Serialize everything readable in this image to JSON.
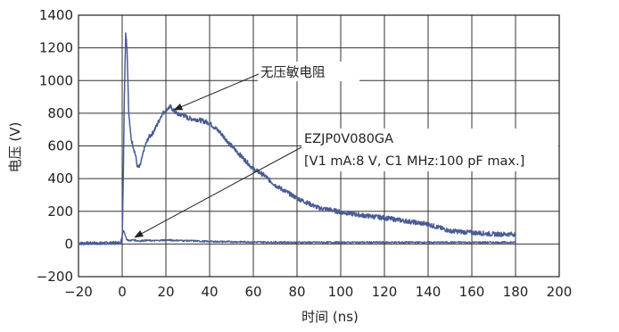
{
  "chart_data": {
    "type": "line",
    "title": "",
    "xlabel": "时间 (ns)",
    "ylabel": "电压 (V)",
    "xlim": [
      -20,
      200
    ],
    "ylim": [
      -200,
      1400
    ],
    "x_ticks": [
      -20,
      0,
      20,
      40,
      60,
      80,
      100,
      120,
      140,
      160,
      180,
      200
    ],
    "x_tick_labels": [
      "−20",
      "0",
      "20",
      "40",
      "60",
      "80",
      "100",
      "120",
      "140",
      "160",
      "180",
      "200"
    ],
    "y_ticks": [
      -200,
      0,
      200,
      400,
      600,
      800,
      1000,
      1200,
      1400
    ],
    "y_tick_labels": [
      "−200",
      "0",
      "200",
      "400",
      "600",
      "800",
      "1000",
      "1200",
      "1400"
    ],
    "grid": true,
    "series": [
      {
        "name": "无压敏电阻",
        "color": "#4a5c94",
        "points": [
          [
            -20,
            5
          ],
          [
            -10,
            6
          ],
          [
            -1,
            8
          ],
          [
            0,
            20
          ],
          [
            0.5,
            400
          ],
          [
            1,
            900
          ],
          [
            1.6,
            1300
          ],
          [
            2.2,
            1200
          ],
          [
            3,
            800
          ],
          [
            4,
            650
          ],
          [
            5,
            600
          ],
          [
            6,
            550
          ],
          [
            7,
            470
          ],
          [
            8,
            470
          ],
          [
            9,
            520
          ],
          [
            10,
            580
          ],
          [
            12,
            650
          ],
          [
            14,
            680
          ],
          [
            16,
            730
          ],
          [
            18,
            790
          ],
          [
            20,
            820
          ],
          [
            22,
            840
          ],
          [
            24,
            810
          ],
          [
            26,
            790
          ],
          [
            28,
            790
          ],
          [
            30,
            770
          ],
          [
            35,
            760
          ],
          [
            40,
            740
          ],
          [
            45,
            680
          ],
          [
            50,
            600
          ],
          [
            55,
            530
          ],
          [
            60,
            460
          ],
          [
            65,
            420
          ],
          [
            70,
            360
          ],
          [
            75,
            320
          ],
          [
            80,
            280
          ],
          [
            85,
            250
          ],
          [
            90,
            220
          ],
          [
            95,
            210
          ],
          [
            100,
            195
          ],
          [
            105,
            185
          ],
          [
            110,
            175
          ],
          [
            120,
            160
          ],
          [
            130,
            140
          ],
          [
            140,
            120
          ],
          [
            145,
            100
          ],
          [
            150,
            80
          ],
          [
            160,
            70
          ],
          [
            170,
            60
          ],
          [
            180,
            60
          ]
        ]
      },
      {
        "name": "EZJP0V080GA",
        "color": "#4a5c94",
        "points": [
          [
            -20,
            0
          ],
          [
            -10,
            0
          ],
          [
            -1,
            2
          ],
          [
            0,
            50
          ],
          [
            0.5,
            80
          ],
          [
            1,
            70
          ],
          [
            2,
            30
          ],
          [
            3,
            20
          ],
          [
            5,
            25
          ],
          [
            8,
            18
          ],
          [
            10,
            22
          ],
          [
            15,
            20
          ],
          [
            20,
            24
          ],
          [
            30,
            20
          ],
          [
            40,
            15
          ],
          [
            60,
            12
          ],
          [
            80,
            10
          ],
          [
            100,
            10
          ],
          [
            120,
            10
          ],
          [
            140,
            10
          ],
          [
            160,
            10
          ],
          [
            180,
            10
          ]
        ]
      }
    ],
    "annotations": [
      {
        "text": "无压敏电阻",
        "points_to": [
          23,
          810
        ]
      },
      {
        "text": "EZJP0V080GA",
        "points_to": [
          5,
          25
        ]
      },
      {
        "text": "[V1 mA:8 V, C1 MHz:100 pF max.]"
      }
    ]
  }
}
